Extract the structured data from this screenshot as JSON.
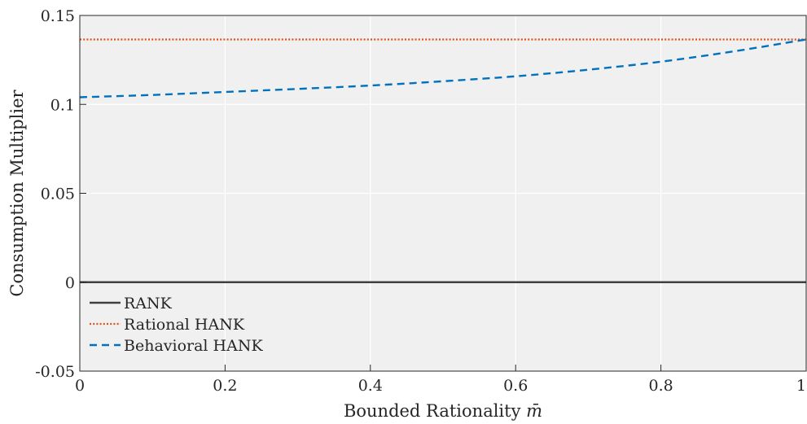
{
  "chart_data": {
    "type": "line",
    "title": "",
    "xlabel": "Bounded Rationality",
    "xlabel_symbol": "m̄",
    "ylabel": "Consumption Multiplier",
    "xlim": [
      0,
      1
    ],
    "ylim": [
      -0.05,
      0.15
    ],
    "xticks": [
      0,
      0.2,
      0.4,
      0.6,
      0.8,
      1
    ],
    "xtick_labels": [
      "0",
      "0.2",
      "0.4",
      "0.6",
      "0.8",
      "1"
    ],
    "yticks": [
      -0.05,
      0,
      0.05,
      0.1,
      0.15
    ],
    "ytick_labels": [
      "-0.05",
      "0",
      "0.05",
      "0.1",
      "0.15"
    ],
    "grid": true,
    "background": "#f0f0f0",
    "legend_placement": "bottom-left",
    "series": [
      {
        "name": "RANK",
        "color": "#404040",
        "style": "solid",
        "x": [
          0,
          1
        ],
        "y": [
          0,
          0
        ]
      },
      {
        "name": "Rational HANK",
        "color": "#d95319",
        "style": "dotted",
        "x": [
          0,
          1
        ],
        "y": [
          0.1365,
          0.1365
        ]
      },
      {
        "name": "Behavioral HANK",
        "color": "#0072bd",
        "style": "dashed",
        "x": [
          0,
          0.1,
          0.2,
          0.3,
          0.4,
          0.5,
          0.6,
          0.7,
          0.8,
          0.9,
          1.0
        ],
        "y": [
          0.104,
          0.1053,
          0.107,
          0.1087,
          0.1106,
          0.113,
          0.1158,
          0.1195,
          0.124,
          0.1298,
          0.1365
        ]
      }
    ]
  }
}
